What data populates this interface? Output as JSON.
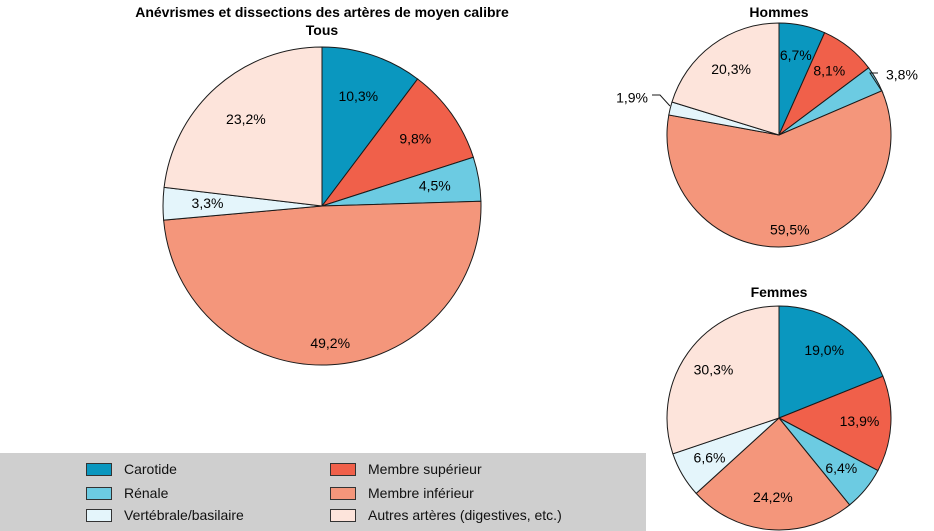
{
  "colors": {
    "carotide": "#0a97bf",
    "membre_superieur": "#f0604a",
    "renale": "#6ccbe2",
    "membre_inferieur": "#f4967b",
    "vertebrale": "#e4f5fb",
    "autres": "#fde4db"
  },
  "chart_data": [
    {
      "type": "pie",
      "title": "Anévrismes et dissections des artères de moyen calibre",
      "subtitle": "Tous",
      "categories": [
        "Carotide",
        "Membre supérieur",
        "Rénale",
        "Membre inférieur",
        "Vertébrale/basilaire",
        "Autres artères (digestives, etc.)"
      ],
      "values": [
        10.3,
        9.8,
        4.5,
        49.2,
        3.3,
        23.2
      ],
      "labels": [
        "10,3%",
        "9,8%",
        "4,5%",
        "49,2%",
        "3,3%",
        "23,2%"
      ]
    },
    {
      "type": "pie",
      "title": "Hommes",
      "categories": [
        "Carotide",
        "Membre supérieur",
        "Rénale",
        "Membre inférieur",
        "Vertébrale/basilaire",
        "Autres artères (digestives, etc.)"
      ],
      "values": [
        6.7,
        8.1,
        3.8,
        59.5,
        1.9,
        20.3
      ],
      "labels": [
        "6,7%",
        "8,1%",
        "3,8%",
        "59,5%",
        "1,9%",
        "20,3%"
      ]
    },
    {
      "type": "pie",
      "title": "Femmes",
      "categories": [
        "Carotide",
        "Membre supérieur",
        "Rénale",
        "Membre inférieur",
        "Vertébrale/basilaire",
        "Autres artères (digestives, etc.)"
      ],
      "values": [
        19.0,
        13.9,
        6.4,
        24.2,
        6.6,
        30.3
      ],
      "labels": [
        "19,0%",
        "13,9%",
        "6,4%",
        "24,2%",
        "6,6%",
        "30,3%"
      ]
    }
  ],
  "legend": {
    "items": [
      {
        "label": "Carotide",
        "key": "carotide"
      },
      {
        "label": "Rénale",
        "key": "renale"
      },
      {
        "label": "Vertébrale/basilaire",
        "key": "vertebrale"
      },
      {
        "label": "Membre supérieur",
        "key": "membre_superieur"
      },
      {
        "label": "Membre inférieur",
        "key": "membre_inferieur"
      },
      {
        "label": "Autres artères (digestives, etc.)",
        "key": "autres"
      }
    ]
  }
}
